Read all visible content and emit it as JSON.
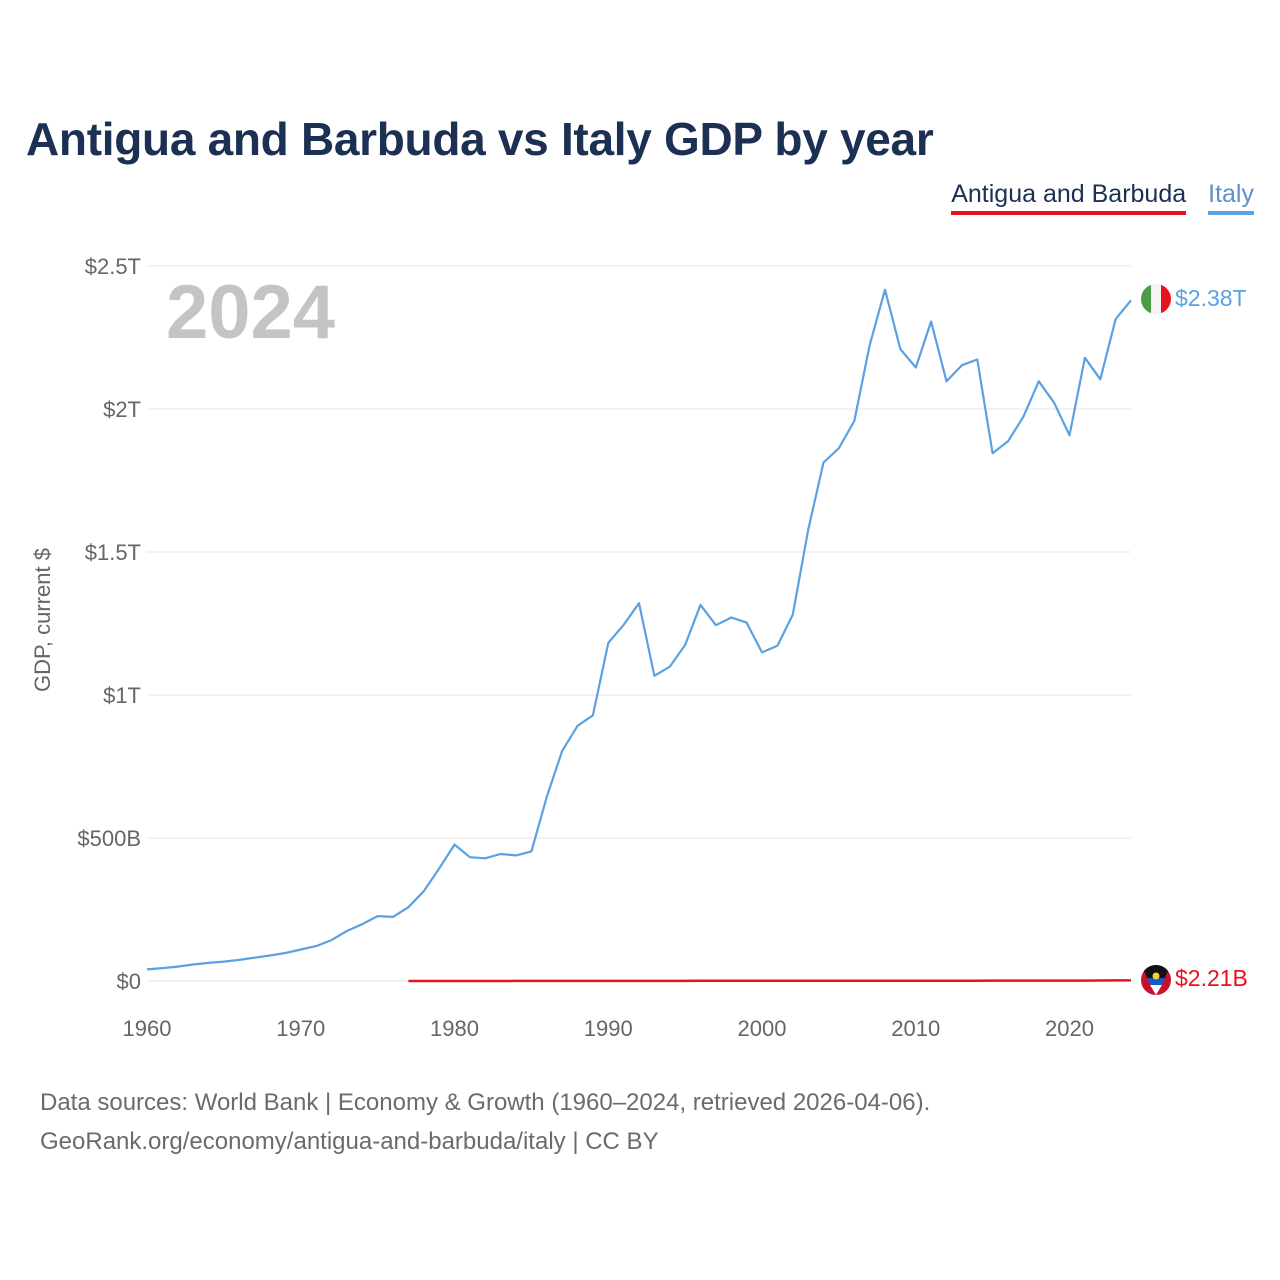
{
  "chart_data": {
    "type": "line",
    "title": "Antigua and Barbuda vs Italy GDP by year",
    "ylabel": "GDP, current $",
    "xlabel": "",
    "current_year_label": "2024",
    "xlim": [
      1960,
      2024
    ],
    "ylim": [
      0,
      2500000000000
    ],
    "grid": true,
    "legend_position": "top-right",
    "x_ticks": [
      {
        "value": 1960,
        "label": "1960"
      },
      {
        "value": 1970,
        "label": "1970"
      },
      {
        "value": 1980,
        "label": "1980"
      },
      {
        "value": 1990,
        "label": "1990"
      },
      {
        "value": 2000,
        "label": "2000"
      },
      {
        "value": 2010,
        "label": "2010"
      },
      {
        "value": 2020,
        "label": "2020"
      }
    ],
    "y_ticks": [
      {
        "value": 0,
        "label": "$0"
      },
      {
        "value": 500000000000,
        "label": "$500B"
      },
      {
        "value": 1000000000000,
        "label": "$1T"
      },
      {
        "value": 1500000000000,
        "label": "$1.5T"
      },
      {
        "value": 2000000000000,
        "label": "$2T"
      },
      {
        "value": 2500000000000,
        "label": "$2.5T"
      }
    ],
    "series": [
      {
        "name": "Antigua and Barbuda",
        "color": "#e8121f",
        "flag": "antigua-and-barbuda-flag-icon",
        "end_label": "$2.21B",
        "x": [
          1977,
          1978,
          1979,
          1980,
          1981,
          1982,
          1983,
          1984,
          1985,
          1986,
          1987,
          1988,
          1989,
          1990,
          1991,
          1992,
          1993,
          1994,
          1995,
          1996,
          1997,
          1998,
          1999,
          2000,
          2001,
          2002,
          2003,
          2004,
          2005,
          2006,
          2007,
          2008,
          2009,
          2010,
          2011,
          2012,
          2013,
          2014,
          2015,
          2016,
          2017,
          2018,
          2019,
          2020,
          2021,
          2022,
          2023,
          2024
        ],
        "values": [
          77000000,
          88000000,
          102000000,
          120000000,
          138000000,
          148000000,
          164000000,
          183000000,
          206000000,
          241000000,
          270000000,
          308000000,
          350000000,
          377000000,
          400000000,
          418000000,
          441000000,
          481000000,
          500000000,
          541000000,
          571000000,
          607000000,
          634000000,
          643000000,
          668000000,
          676000000,
          696000000,
          737000000,
          796000000,
          876000000,
          1016000000,
          1120000000,
          1052000000,
          1046000000,
          1079000000,
          1103000000,
          1134000000,
          1172000000,
          1231000000,
          1307000000,
          1349000000,
          1462000000,
          1533000000,
          1394000000,
          1479000000,
          1689000000,
          1988000000,
          2210000000
        ]
      },
      {
        "name": "Italy",
        "color": "#5aa1e3",
        "flag": "italy-flag-icon",
        "end_label": "$2.38T",
        "x": [
          1960,
          1961,
          1962,
          1963,
          1964,
          1965,
          1966,
          1967,
          1968,
          1969,
          1970,
          1971,
          1972,
          1973,
          1974,
          1975,
          1976,
          1977,
          1978,
          1979,
          1980,
          1981,
          1982,
          1983,
          1984,
          1985,
          1986,
          1987,
          1988,
          1989,
          1990,
          1991,
          1992,
          1993,
          1994,
          1995,
          1996,
          1997,
          1998,
          1999,
          2000,
          2001,
          2002,
          2003,
          2004,
          2005,
          2006,
          2007,
          2008,
          2009,
          2010,
          2011,
          2012,
          2013,
          2014,
          2015,
          2016,
          2017,
          2018,
          2019,
          2020,
          2021,
          2022,
          2023,
          2024
        ],
        "values": [
          40400000000,
          45100000000,
          50400000000,
          57700000000,
          63200000000,
          67900000000,
          73900000000,
          81600000000,
          89000000000,
          97900000000,
          110000000000,
          122000000000,
          143000000000,
          175000000000,
          199000000000,
          227000000000,
          224000000000,
          258000000000,
          314000000000,
          393000000000,
          477000000000,
          433000000000,
          429000000000,
          444000000000,
          439000000000,
          453000000000,
          644000000000,
          804000000000,
          892000000000,
          929000000000,
          1182000000000,
          1245000000000,
          1321000000000,
          1067000000000,
          1099000000000,
          1175000000000,
          1315000000000,
          1244000000000,
          1271000000000,
          1253000000000,
          1149000000000,
          1172000000000,
          1281000000000,
          1576000000000,
          1813000000000,
          1863000000000,
          1958000000000,
          2222000000000,
          2417000000000,
          2209000000000,
          2145000000000,
          2306000000000,
          2097000000000,
          2153000000000,
          2173000000000,
          1845000000000,
          1887000000000,
          1973000000000,
          2097000000000,
          2022000000000,
          1908000000000,
          2179000000000,
          2104000000000,
          2314000000000,
          2380000000000
        ]
      }
    ]
  },
  "legend": {
    "items": [
      {
        "label": "Antigua and Barbuda"
      },
      {
        "label": "Italy"
      }
    ]
  },
  "footer": {
    "line1": "Data sources: World Bank | Economy & Growth (1960–2024, retrieved 2026-04-06).",
    "line2": "GeoRank.org/economy/antigua-and-barbuda/italy | CC BY"
  }
}
